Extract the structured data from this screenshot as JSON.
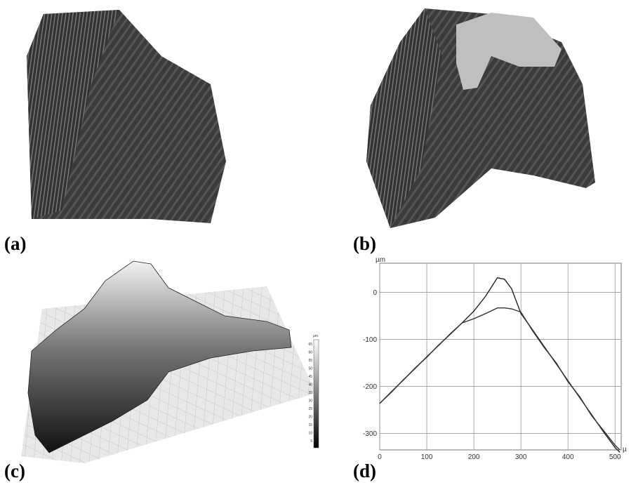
{
  "panels": {
    "a": "(a)",
    "b": "(b)",
    "c": "(c)",
    "d": "(d)"
  },
  "colorbar": {
    "unit": "µm",
    "ticks": [
      65,
      60,
      55,
      50,
      45,
      40,
      35,
      30,
      25,
      20,
      15,
      10,
      5
    ]
  },
  "chart_data": {
    "type": "line",
    "y_label": "µm",
    "x_label": "µ",
    "x": [
      0,
      25,
      50,
      75,
      100,
      125,
      150,
      175,
      200,
      225,
      250,
      265,
      280,
      300,
      325,
      350,
      375,
      400,
      425,
      450,
      475,
      500,
      510
    ],
    "series": [
      {
        "color": "#222222",
        "values": [
          -236,
          -212,
          -186,
          -162,
          -137,
          -113,
          -88,
          -65,
          -40,
          -8,
          31,
          28,
          8,
          -45,
          -80,
          -116,
          -152,
          -188,
          -224,
          -260,
          -296,
          -330,
          -340
        ]
      },
      {
        "color": "#333333",
        "values": [
          -236,
          -211,
          -187,
          -161,
          -138,
          -112,
          -89,
          -65,
          -56,
          -45,
          -33,
          -33,
          -35,
          -42,
          -82,
          -118,
          -150,
          -190,
          -222,
          -262,
          -293,
          -325,
          -335
        ]
      }
    ],
    "xlim": [
      0,
      513
    ],
    "ylim": [
      -335,
      62
    ],
    "xticks": [
      0,
      100,
      200,
      300,
      400,
      500
    ],
    "yticks": [
      -300,
      -200,
      -100,
      0
    ],
    "grid": true
  }
}
